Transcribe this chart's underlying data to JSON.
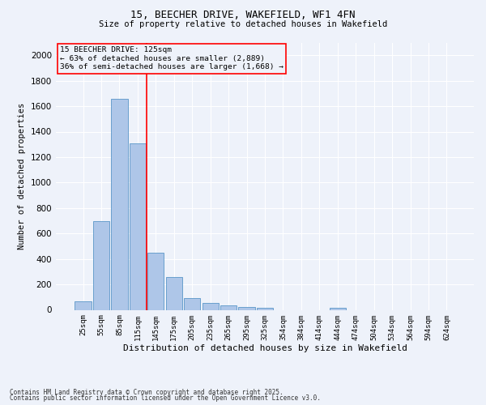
{
  "title_line1": "15, BEECHER DRIVE, WAKEFIELD, WF1 4FN",
  "title_line2": "Size of property relative to detached houses in Wakefield",
  "xlabel": "Distribution of detached houses by size in Wakefield",
  "ylabel": "Number of detached properties",
  "categories": [
    "25sqm",
    "55sqm",
    "85sqm",
    "115sqm",
    "145sqm",
    "175sqm",
    "205sqm",
    "235sqm",
    "265sqm",
    "295sqm",
    "325sqm",
    "354sqm",
    "384sqm",
    "414sqm",
    "444sqm",
    "474sqm",
    "504sqm",
    "534sqm",
    "564sqm",
    "594sqm",
    "624sqm"
  ],
  "values": [
    65,
    700,
    1660,
    1310,
    450,
    255,
    90,
    55,
    35,
    25,
    15,
    0,
    0,
    0,
    15,
    0,
    0,
    0,
    0,
    0,
    0
  ],
  "bar_color": "#aec6e8",
  "bar_edge_color": "#5a96c8",
  "bar_edge_width": 0.6,
  "vline_color": "red",
  "annotation_text": "15 BEECHER DRIVE: 125sqm\n← 63% of detached houses are smaller (2,889)\n36% of semi-detached houses are larger (1,668) →",
  "annotation_box_color": "red",
  "annotation_text_color": "black",
  "ylim": [
    0,
    2100
  ],
  "yticks": [
    0,
    200,
    400,
    600,
    800,
    1000,
    1200,
    1400,
    1600,
    1800,
    2000
  ],
  "bg_color": "#eef2fa",
  "grid_color": "white",
  "footer_line1": "Contains HM Land Registry data © Crown copyright and database right 2025.",
  "footer_line2": "Contains public sector information licensed under the Open Government Licence v3.0."
}
